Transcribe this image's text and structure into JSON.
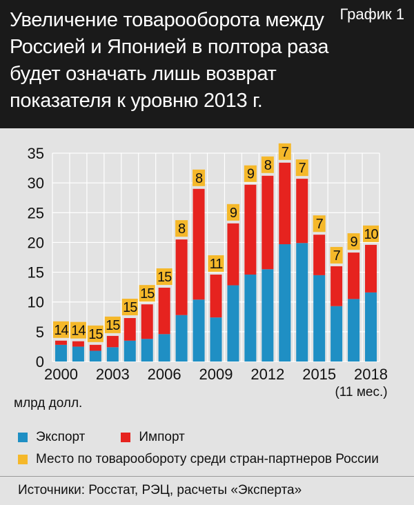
{
  "header": {
    "title": "Увеличение товарооборота между Россией и Японией в полтора раза будет означать лишь возврат показателя к уровню 2013 г.",
    "chart_label": "График 1"
  },
  "legend": {
    "export_label": "Экспорт",
    "import_label": "Импорт",
    "rank_label": "Место по товарообороту среди стран-партнеров России"
  },
  "source": "Источники: Росстат, РЭЦ, расчеты «Эксперта»",
  "colors": {
    "export": "#1f8fc4",
    "import": "#e6231f",
    "rank": "#f5b82a",
    "grid": "#ffffff",
    "bg": "#e3e3e3"
  },
  "chart_data": {
    "type": "bar",
    "stacked": true,
    "unit_label": "млрд долл.",
    "x_tick_labels": [
      "2000",
      "2003",
      "2006",
      "2009",
      "2012",
      "2015",
      "2018"
    ],
    "x_tick_note": "(11 мес.)",
    "categories": [
      "2000",
      "2001",
      "2002",
      "2003",
      "2004",
      "2005",
      "2006",
      "2007",
      "2008",
      "2009",
      "2010",
      "2011",
      "2012",
      "2013",
      "2014",
      "2015",
      "2016",
      "2017",
      "2018"
    ],
    "series": [
      {
        "name": "Экспорт",
        "values": [
          2.8,
          2.5,
          1.8,
          2.4,
          3.5,
          3.8,
          4.6,
          7.8,
          10.4,
          7.4,
          12.8,
          14.6,
          15.5,
          19.7,
          19.9,
          14.5,
          9.3,
          10.5,
          11.6
        ]
      },
      {
        "name": "Импорт",
        "values": [
          0.7,
          0.9,
          1.0,
          1.9,
          3.8,
          5.8,
          7.8,
          12.7,
          18.6,
          7.2,
          10.4,
          15.1,
          15.7,
          13.7,
          10.8,
          6.8,
          6.7,
          7.8,
          8.0
        ]
      }
    ],
    "rank": [
      14,
      14,
      15,
      15,
      15,
      15,
      15,
      8,
      8,
      11,
      9,
      9,
      8,
      7,
      7,
      7,
      7,
      9,
      10
    ],
    "ylim": [
      0,
      35
    ],
    "y_ticks": [
      0,
      5,
      10,
      15,
      20,
      25,
      30,
      35
    ],
    "grid": true
  }
}
